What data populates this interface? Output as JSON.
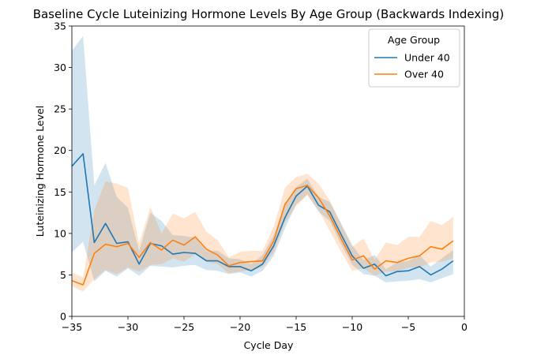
{
  "chart_data": {
    "type": "line",
    "title": "Baseline Cycle Luteinizing Hormone Levels By Age Group (Backwards Indexing)",
    "xlabel": "Cycle Day",
    "ylabel": "Luteinizing Hormone Level",
    "xlim": [
      -35,
      0
    ],
    "ylim": [
      0,
      35
    ],
    "xticks": [
      -35,
      -30,
      -25,
      -20,
      -15,
      -10,
      -5,
      0
    ],
    "xtick_labels": [
      "−35",
      "−30",
      "−25",
      "−20",
      "−15",
      "−10",
      "−5",
      "0"
    ],
    "yticks": [
      0,
      5,
      10,
      15,
      20,
      25,
      30,
      35
    ],
    "ytick_labels": [
      "0",
      "5",
      "10",
      "15",
      "20",
      "25",
      "30",
      "35"
    ],
    "grid": false,
    "legend": {
      "title": "Age Group",
      "placement": "top-right"
    },
    "x": [
      -35,
      -34,
      -33,
      -32,
      -31,
      -30,
      -29,
      -28,
      -27,
      -26,
      -25,
      -24,
      -23,
      -22,
      -21,
      -20,
      -19,
      -18,
      -17,
      -16,
      -15,
      -14,
      -13,
      -12,
      -11,
      -10,
      -9,
      -8,
      -7,
      -6,
      -5,
      -4,
      -3,
      -2,
      -1
    ],
    "series": [
      {
        "name": "Under 40",
        "color": "#1f77b4",
        "values": [
          18.1,
          19.6,
          8.9,
          11.2,
          8.8,
          9.0,
          6.3,
          8.8,
          8.5,
          7.5,
          7.7,
          7.6,
          6.7,
          6.7,
          6.0,
          6.0,
          5.5,
          6.3,
          8.5,
          11.9,
          14.5,
          15.7,
          13.4,
          12.6,
          9.9,
          7.3,
          5.8,
          6.3,
          4.9,
          5.4,
          5.5,
          6.0,
          5.0,
          5.7,
          6.7
        ],
        "ci_lower": [
          7.7,
          9.0,
          4.2,
          5.5,
          4.8,
          5.8,
          4.9,
          6.1,
          6.0,
          5.9,
          6.1,
          6.2,
          5.6,
          5.5,
          5.1,
          5.3,
          4.8,
          5.5,
          7.3,
          10.6,
          13.5,
          14.7,
          12.6,
          11.5,
          8.7,
          6.2,
          5.1,
          4.9,
          4.1,
          4.2,
          4.3,
          4.5,
          4.1,
          4.6,
          5.1
        ],
        "ci_upper": [
          32.0,
          33.8,
          15.8,
          18.5,
          14.4,
          13.1,
          7.9,
          12.5,
          11.5,
          9.8,
          9.7,
          9.5,
          7.9,
          7.9,
          7.0,
          6.9,
          6.3,
          7.4,
          9.8,
          13.5,
          15.6,
          16.6,
          14.4,
          13.8,
          11.2,
          8.6,
          6.8,
          7.4,
          5.7,
          6.5,
          6.7,
          7.4,
          6.0,
          7.0,
          8.0
        ]
      },
      {
        "name": "Over 40",
        "color": "#ff7f0e",
        "values": [
          4.3,
          3.8,
          7.6,
          8.7,
          8.4,
          8.8,
          7.1,
          8.9,
          8.0,
          9.2,
          8.6,
          9.6,
          8.1,
          7.4,
          6.1,
          6.5,
          6.6,
          6.7,
          9.1,
          13.5,
          15.4,
          15.8,
          14.3,
          12.1,
          9.4,
          6.8,
          7.3,
          5.7,
          6.7,
          6.5,
          7.0,
          7.3,
          8.4,
          8.1,
          9.1
        ],
        "ci_lower": [
          3.6,
          3.0,
          4.5,
          5.6,
          5.1,
          5.9,
          5.4,
          6.2,
          6.3,
          7.0,
          6.6,
          7.5,
          6.6,
          6.3,
          5.2,
          5.4,
          5.6,
          5.9,
          7.7,
          11.3,
          13.3,
          14.6,
          12.8,
          10.3,
          7.8,
          5.5,
          5.8,
          4.9,
          5.4,
          5.4,
          5.9,
          5.9,
          6.5,
          6.6,
          7.0
        ],
        "ci_upper": [
          5.3,
          4.7,
          12.8,
          16.3,
          16.0,
          15.5,
          8.8,
          13.2,
          10.0,
          12.4,
          11.8,
          12.6,
          10.2,
          9.2,
          7.1,
          7.8,
          7.9,
          7.9,
          10.8,
          15.5,
          16.8,
          17.2,
          16.0,
          14.0,
          11.2,
          8.4,
          9.4,
          6.8,
          8.9,
          8.6,
          9.6,
          9.6,
          11.5,
          11.0,
          12.0
        ]
      }
    ]
  }
}
